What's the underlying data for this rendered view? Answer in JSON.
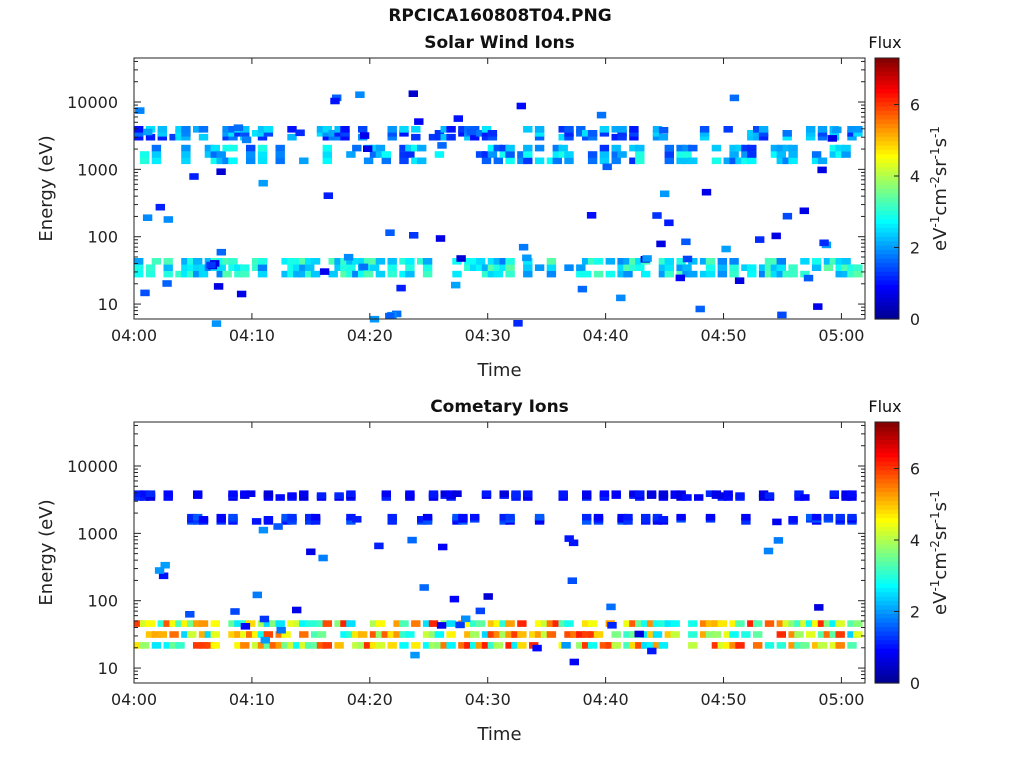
{
  "figure_title": "RPCICA160808T04.PNG",
  "colorbar_unit": "eV-1cm-2sr-1s-1",
  "colormap": [
    "#00008f",
    "#0000ff",
    "#0080ff",
    "#00ffff",
    "#80ff80",
    "#ffff00",
    "#ff8000",
    "#ff0000",
    "#800000"
  ],
  "chart_data": [
    {
      "type": "heatmap",
      "title": "Solar Wind Ions",
      "xlabel": "Time",
      "ylabel": "Energy (eV)",
      "x_ticks": [
        "04:00",
        "04:10",
        "04:20",
        "04:30",
        "04:40",
        "04:50",
        "05:00"
      ],
      "xlim_minutes_after_0400": [
        0,
        62
      ],
      "y_scale": "log",
      "y_ticks": [
        "10",
        "100",
        "1000",
        "10000"
      ],
      "ylim": [
        6,
        45000
      ],
      "colorbar": {
        "title": "Flux",
        "ticks": [
          "0",
          "2",
          "4",
          "6"
        ],
        "range": [
          0,
          7.3
        ]
      },
      "grid": false,
      "bands": [
        {
          "e_min": 25,
          "e_max": 48,
          "flux_min": 1.8,
          "flux_max": 3.4,
          "coverage": 0.75
        },
        {
          "e_min": 1200,
          "e_max": 2300,
          "flux_min": 1.2,
          "flux_max": 3.0,
          "coverage": 0.55
        },
        {
          "e_min": 2800,
          "e_max": 4200,
          "flux_min": 1.0,
          "flux_max": 2.6,
          "coverage": 0.5
        }
      ],
      "sparse_points": 80,
      "sparse_range": [
        5,
        15000
      ]
    },
    {
      "type": "heatmap",
      "title": "Cometary Ions",
      "xlabel": "Time",
      "ylabel": "Energy (eV)",
      "x_ticks": [
        "04:00",
        "04:10",
        "04:20",
        "04:30",
        "04:40",
        "04:50",
        "05:00"
      ],
      "xlim_minutes_after_0400": [
        0,
        62
      ],
      "y_scale": "log",
      "y_ticks": [
        "10",
        "100",
        "1000",
        "10000"
      ],
      "ylim": [
        6,
        45000
      ],
      "colorbar": {
        "title": "Flux",
        "ticks": [
          "0",
          "2",
          "4",
          "6"
        ],
        "range": [
          0,
          7.3
        ]
      },
      "grid": false,
      "bands": [
        {
          "e_min": 18,
          "e_max": 55,
          "flux_min": 2.4,
          "flux_max": 6.2,
          "coverage": 0.9
        },
        {
          "e_min": 1450,
          "e_max": 1800,
          "flux_min": 0.8,
          "flux_max": 1.6,
          "coverage": 0.4
        },
        {
          "e_min": 3300,
          "e_max": 4000,
          "flux_min": 0.6,
          "flux_max": 1.2,
          "coverage": 0.35
        }
      ],
      "sparse_points": 40,
      "sparse_range": [
        12,
        1500
      ]
    }
  ]
}
